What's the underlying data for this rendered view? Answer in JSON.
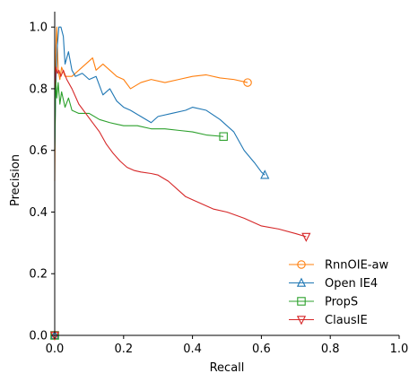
{
  "chart_data": {
    "type": "line",
    "xlabel": "Recall",
    "ylabel": "Precision",
    "xlim": [
      0,
      1.0
    ],
    "ylim": [
      0,
      1.05
    ],
    "xticks": [
      "0.0",
      "0.2",
      "0.4",
      "0.6",
      "0.8",
      "1.0"
    ],
    "yticks": [
      "0.0",
      "0.2",
      "0.4",
      "0.6",
      "0.8",
      "1.0"
    ],
    "grid": false,
    "legend_position": "lower-right",
    "series": [
      {
        "name": "RnnOIE-aw",
        "color": "#ff7f0e",
        "marker": "circle",
        "x": [
          0.0,
          0.003,
          0.006,
          0.01,
          0.015,
          0.02,
          0.03,
          0.05,
          0.07,
          0.09,
          0.11,
          0.12,
          0.14,
          0.16,
          0.18,
          0.2,
          0.22,
          0.25,
          0.28,
          0.32,
          0.36,
          0.4,
          0.44,
          0.48,
          0.52,
          0.56
        ],
        "y": [
          0.5,
          0.92,
          1.0,
          0.86,
          0.83,
          0.87,
          0.84,
          0.84,
          0.86,
          0.88,
          0.9,
          0.86,
          0.88,
          0.86,
          0.84,
          0.83,
          0.8,
          0.82,
          0.83,
          0.82,
          0.83,
          0.84,
          0.845,
          0.835,
          0.83,
          0.82
        ]
      },
      {
        "name": "Open IE4",
        "color": "#1f77b4",
        "marker": "triangle-up",
        "x": [
          0.0,
          0.003,
          0.007,
          0.012,
          0.018,
          0.025,
          0.03,
          0.04,
          0.05,
          0.06,
          0.08,
          0.1,
          0.12,
          0.14,
          0.16,
          0.18,
          0.2,
          0.22,
          0.25,
          0.28,
          0.3,
          0.34,
          0.38,
          0.4,
          0.44,
          0.48,
          0.52,
          0.55,
          0.58,
          0.6,
          0.61
        ],
        "y": [
          0.6,
          0.8,
          0.93,
          1.0,
          1.0,
          0.97,
          0.88,
          0.92,
          0.86,
          0.84,
          0.85,
          0.83,
          0.84,
          0.78,
          0.8,
          0.76,
          0.74,
          0.73,
          0.71,
          0.69,
          0.71,
          0.72,
          0.73,
          0.74,
          0.73,
          0.7,
          0.66,
          0.6,
          0.56,
          0.53,
          0.52
        ]
      },
      {
        "name": "PropS",
        "color": "#2ca02c",
        "marker": "square",
        "x": [
          0.0,
          0.003,
          0.006,
          0.01,
          0.015,
          0.02,
          0.03,
          0.04,
          0.05,
          0.07,
          0.1,
          0.13,
          0.16,
          0.2,
          0.24,
          0.28,
          0.32,
          0.36,
          0.4,
          0.44,
          0.49
        ],
        "y": [
          0.6,
          0.83,
          0.77,
          0.82,
          0.75,
          0.79,
          0.74,
          0.77,
          0.73,
          0.72,
          0.72,
          0.7,
          0.69,
          0.68,
          0.68,
          0.67,
          0.67,
          0.665,
          0.66,
          0.65,
          0.645
        ]
      },
      {
        "name": "ClausIE",
        "color": "#d62728",
        "marker": "triangle-down",
        "x": [
          0.0,
          0.004,
          0.008,
          0.012,
          0.018,
          0.025,
          0.035,
          0.05,
          0.07,
          0.09,
          0.11,
          0.13,
          0.15,
          0.17,
          0.19,
          0.21,
          0.23,
          0.25,
          0.28,
          0.3,
          0.33,
          0.36,
          0.38,
          0.4,
          0.43,
          0.46,
          0.5,
          0.55,
          0.6,
          0.65,
          0.7,
          0.73
        ],
        "y": [
          0.8,
          0.87,
          0.85,
          0.86,
          0.84,
          0.86,
          0.83,
          0.8,
          0.75,
          0.72,
          0.69,
          0.66,
          0.62,
          0.59,
          0.565,
          0.545,
          0.535,
          0.53,
          0.525,
          0.52,
          0.5,
          0.47,
          0.45,
          0.44,
          0.425,
          0.41,
          0.4,
          0.38,
          0.355,
          0.345,
          0.33,
          0.32
        ]
      }
    ]
  }
}
